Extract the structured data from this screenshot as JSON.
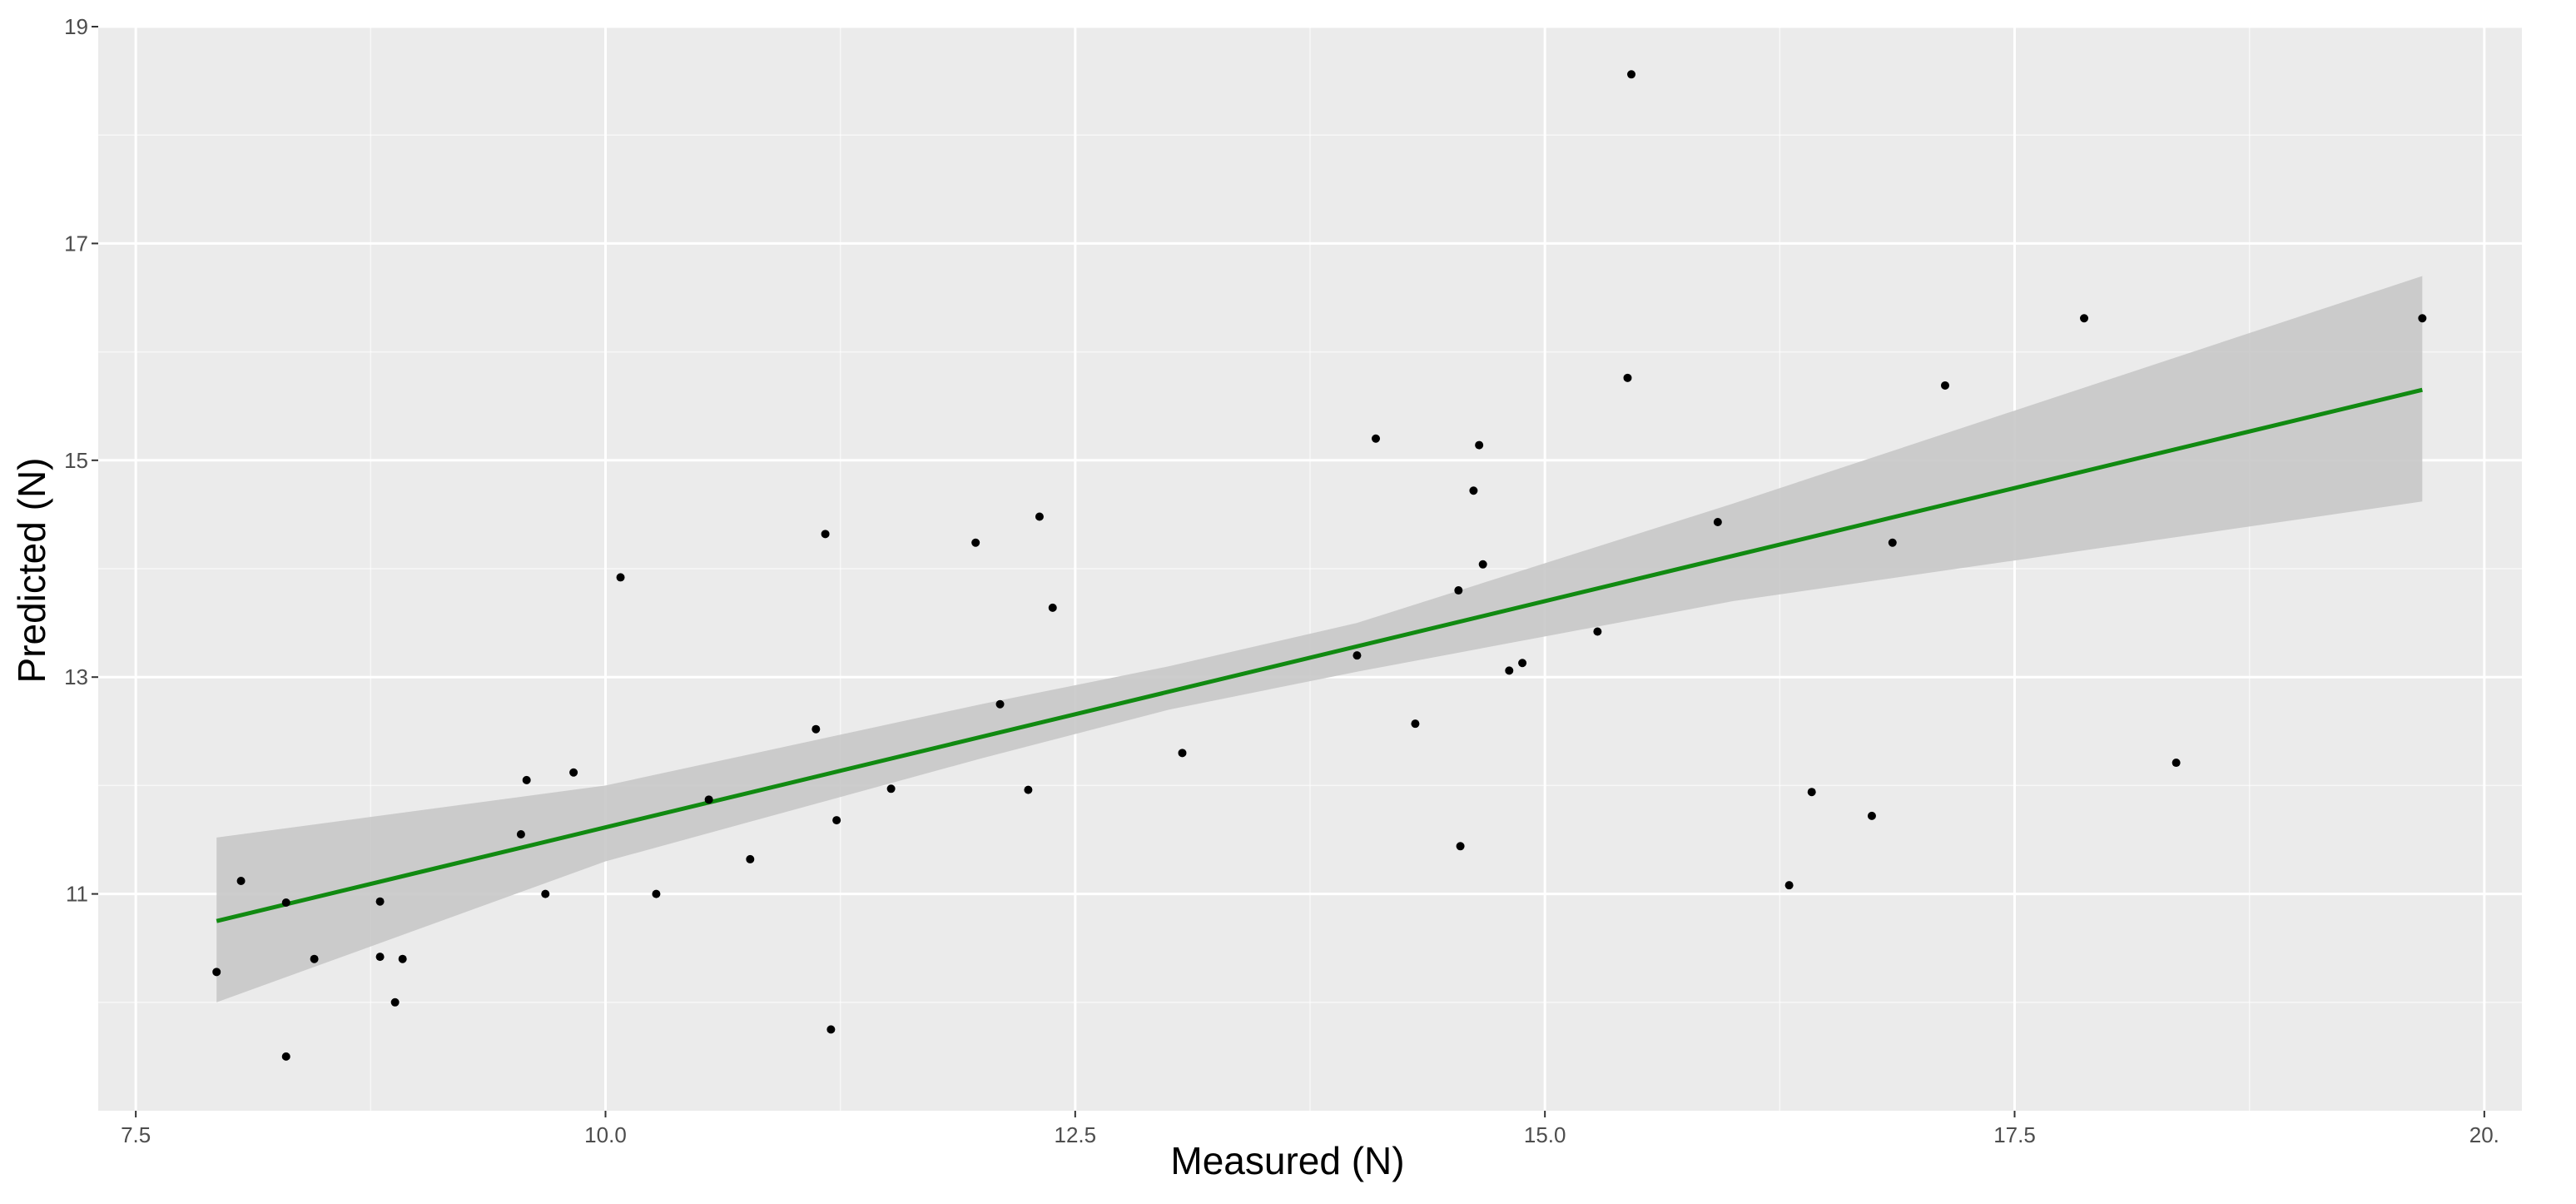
{
  "chart_data": {
    "type": "scatter",
    "xlabel": "Measured (N)",
    "ylabel": "Predicted (N)",
    "xlim": [
      7.3,
      20.2
    ],
    "ylim": [
      9.0,
      19.0
    ],
    "x_ticks": [
      7.5,
      10.0,
      12.5,
      15.0,
      17.5,
      20.0
    ],
    "x_tick_labels": [
      "7.5",
      "10.0",
      "12.5",
      "15.0",
      "17.5",
      "20."
    ],
    "y_ticks": [
      11,
      13,
      15,
      17,
      19
    ],
    "y_tick_labels": [
      "11",
      "13",
      "15",
      "17",
      "19"
    ],
    "grid": true,
    "legend": "none",
    "points": [
      {
        "x": 7.93,
        "y": 10.28
      },
      {
        "x": 8.06,
        "y": 11.12
      },
      {
        "x": 8.3,
        "y": 10.92
      },
      {
        "x": 8.3,
        "y": 9.5
      },
      {
        "x": 8.45,
        "y": 10.4
      },
      {
        "x": 8.8,
        "y": 10.42
      },
      {
        "x": 8.8,
        "y": 10.93
      },
      {
        "x": 8.88,
        "y": 10.0
      },
      {
        "x": 8.92,
        "y": 10.4
      },
      {
        "x": 9.55,
        "y": 11.55
      },
      {
        "x": 9.58,
        "y": 12.05
      },
      {
        "x": 9.68,
        "y": 11.0
      },
      {
        "x": 9.83,
        "y": 12.12
      },
      {
        "x": 10.08,
        "y": 13.92
      },
      {
        "x": 10.27,
        "y": 11.0
      },
      {
        "x": 10.55,
        "y": 11.87
      },
      {
        "x": 10.77,
        "y": 11.32
      },
      {
        "x": 11.12,
        "y": 12.52
      },
      {
        "x": 11.17,
        "y": 14.32
      },
      {
        "x": 11.2,
        "y": 9.75
      },
      {
        "x": 11.23,
        "y": 11.68
      },
      {
        "x": 11.52,
        "y": 11.97
      },
      {
        "x": 11.97,
        "y": 14.24
      },
      {
        "x": 12.1,
        "y": 12.75
      },
      {
        "x": 12.25,
        "y": 11.96
      },
      {
        "x": 12.31,
        "y": 14.48
      },
      {
        "x": 12.38,
        "y": 13.64
      },
      {
        "x": 13.07,
        "y": 12.3
      },
      {
        "x": 14.0,
        "y": 13.2
      },
      {
        "x": 14.1,
        "y": 15.2
      },
      {
        "x": 14.31,
        "y": 12.57
      },
      {
        "x": 14.54,
        "y": 13.8
      },
      {
        "x": 14.55,
        "y": 11.44
      },
      {
        "x": 14.62,
        "y": 14.72
      },
      {
        "x": 14.65,
        "y": 15.14
      },
      {
        "x": 14.67,
        "y": 14.04
      },
      {
        "x": 14.81,
        "y": 13.06
      },
      {
        "x": 14.88,
        "y": 13.13
      },
      {
        "x": 15.28,
        "y": 13.42
      },
      {
        "x": 15.44,
        "y": 15.76
      },
      {
        "x": 15.46,
        "y": 18.56
      },
      {
        "x": 15.92,
        "y": 14.43
      },
      {
        "x": 16.3,
        "y": 11.08
      },
      {
        "x": 16.42,
        "y": 11.94
      },
      {
        "x": 16.74,
        "y": 11.72
      },
      {
        "x": 16.85,
        "y": 14.24
      },
      {
        "x": 17.13,
        "y": 15.69
      },
      {
        "x": 17.87,
        "y": 16.31
      },
      {
        "x": 18.36,
        "y": 12.21
      },
      {
        "x": 19.67,
        "y": 16.31
      }
    ],
    "fit_line": {
      "x": [
        7.93,
        19.67
      ],
      "y": [
        10.75,
        15.65
      ],
      "color": "#118a11"
    },
    "confidence_band": {
      "x": [
        7.93,
        10.0,
        12.0,
        13.0,
        14.0,
        16.0,
        19.67
      ],
      "lower": [
        10.0,
        11.3,
        12.25,
        12.7,
        13.05,
        13.7,
        14.62
      ],
      "upper": [
        11.52,
        12.0,
        12.75,
        13.1,
        13.5,
        14.6,
        16.7
      ],
      "color": "#c8c8c8"
    },
    "colors": {
      "panel": "#ebebeb",
      "grid_major": "#ffffff",
      "points": "#000000"
    }
  }
}
